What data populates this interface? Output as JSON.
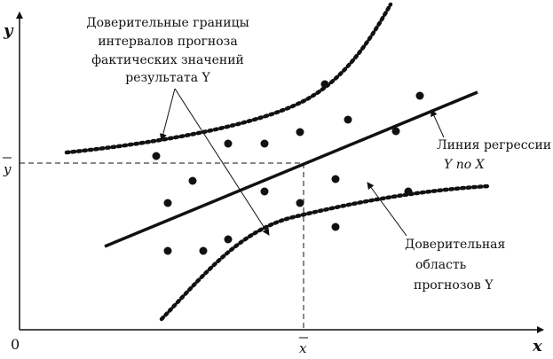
{
  "axes": {
    "y_label": "y",
    "x_label": "x",
    "origin_label": "0",
    "y_mean_label": "y",
    "x_mean_label": "x"
  },
  "annotations": {
    "confidence_bounds": [
      "Доверительные границы",
      "интервалов прогноза",
      "фактических значений",
      "результата Y"
    ],
    "regression_line": [
      "Линия регрессии",
      "Y по X"
    ],
    "confidence_region": [
      "Доверительная",
      "область",
      "прогнозов  Y"
    ]
  }
}
